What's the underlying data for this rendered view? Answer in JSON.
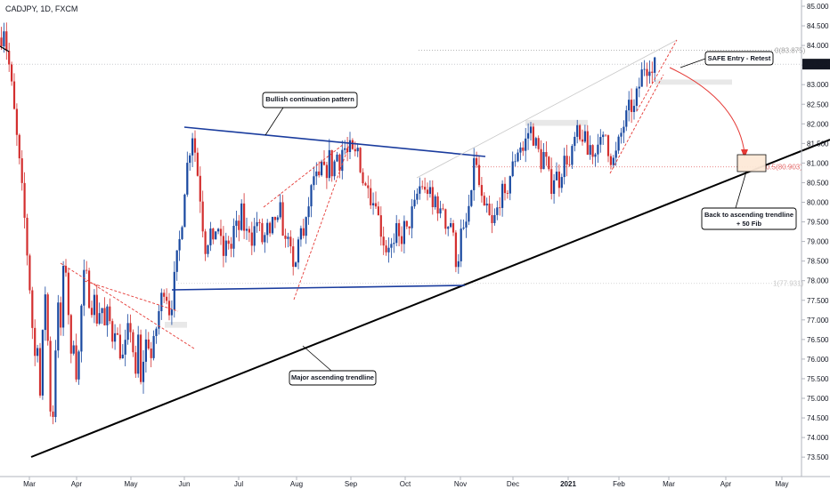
{
  "title": "CADJPY, 1D, FXCM",
  "chart_data": {
    "type": "candlestick",
    "symbol": "CADJPY",
    "timeframe": "1D",
    "source": "FXCM",
    "ylim": [
      73.2,
      85.1
    ],
    "y_ticks": [
      73.5,
      74.0,
      74.5,
      75.0,
      75.5,
      76.0,
      76.5,
      77.0,
      77.5,
      78.0,
      78.5,
      79.0,
      79.5,
      80.0,
      80.5,
      81.0,
      81.5,
      82.0,
      82.5,
      83.0,
      83.5,
      84.0,
      84.5,
      85.0
    ],
    "x_ticks": [
      "Mar",
      "Apr",
      "May",
      "Jun",
      "Jul",
      "Aug",
      "Sep",
      "Oct",
      "Nov",
      "Dec",
      "2021",
      "Feb",
      "Mar",
      "Apr",
      "May"
    ],
    "current_price": "83.523",
    "colors": {
      "up": "#1848a0",
      "down": "#d32f2f",
      "price_tag": "#131722"
    },
    "fib_levels": [
      {
        "label": "0(83.875)",
        "value": 83.875
      },
      {
        "label": "0.5(80.903)",
        "value": 80.903
      },
      {
        "label": "1(77.931)",
        "value": 77.931
      }
    ],
    "annotations": [
      {
        "id": "bullish",
        "text": "Bullish continuation pattern"
      },
      {
        "id": "major",
        "text": "Major ascending trendline"
      },
      {
        "id": "safe",
        "text": "SAFE Entry - Retest"
      },
      {
        "id": "back",
        "lines": [
          "Back to ascending trendline",
          "+ 50 Fib"
        ]
      }
    ],
    "path_points": [
      [
        0,
        84.2
      ],
      [
        3,
        84.5
      ],
      [
        6,
        83.9
      ],
      [
        10,
        83.3
      ],
      [
        14,
        82.4
      ],
      [
        18,
        81.5
      ],
      [
        22,
        80.6
      ],
      [
        26,
        79.6
      ],
      [
        30,
        78.4
      ],
      [
        34,
        77.2
      ],
      [
        37,
        75.8
      ],
      [
        40,
        76.9
      ],
      [
        43,
        74.8
      ],
      [
        46,
        76.4
      ],
      [
        50,
        78.0
      ],
      [
        54,
        75.2
      ],
      [
        57,
        74.0
      ],
      [
        60,
        75.8
      ],
      [
        63,
        77.6
      ],
      [
        66,
        76.4
      ],
      [
        69,
        78.1
      ],
      [
        72,
        78.5
      ],
      [
        75,
        77.4
      ],
      [
        78,
        75.9
      ],
      [
        81,
        76.6
      ],
      [
        85,
        75.4
      ],
      [
        88,
        76.5
      ],
      [
        91,
        77.8
      ],
      [
        94,
        78.3
      ],
      [
        97,
        77.9
      ],
      [
        100,
        77.2
      ],
      [
        104,
        77.6
      ],
      [
        108,
        76.9
      ],
      [
        112,
        77.5
      ],
      [
        116,
        76.8
      ],
      [
        120,
        77.3
      ],
      [
        124,
        76.5
      ],
      [
        128,
        76.9
      ],
      [
        132,
        76.3
      ],
      [
        136,
        76.0
      ],
      [
        140,
        76.4
      ],
      [
        144,
        77.0
      ],
      [
        148,
        76.2
      ],
      [
        151,
        75.4
      ],
      [
        154,
        76.7
      ],
      [
        157,
        75.1
      ],
      [
        160,
        76.2
      ],
      [
        164,
        76.6
      ],
      [
        168,
        76.0
      ],
      [
        172,
        76.5
      ],
      [
        176,
        77.1
      ],
      [
        180,
        77.6
      ],
      [
        184,
        77.9
      ],
      [
        188,
        77.2
      ],
      [
        192,
        77.5
      ],
      [
        195,
        78.2
      ],
      [
        198,
        78.7
      ],
      [
        202,
        79.3
      ],
      [
        206,
        80.4
      ],
      [
        209,
        81.0
      ],
      [
        212,
        81.4
      ],
      [
        215,
        81.8
      ],
      [
        218,
        81.2
      ],
      [
        221,
        80.6
      ],
      [
        224,
        80.0
      ],
      [
        227,
        79.2
      ],
      [
        230,
        78.7
      ],
      [
        234,
        79.4
      ],
      [
        238,
        78.8
      ],
      [
        242,
        79.6
      ],
      [
        246,
        79.0
      ],
      [
        250,
        78.6
      ],
      [
        254,
        79.1
      ],
      [
        258,
        78.8
      ],
      [
        262,
        79.5
      ],
      [
        266,
        79.2
      ],
      [
        270,
        79.8
      ],
      [
        274,
        79.1
      ],
      [
        278,
        79.4
      ],
      [
        282,
        79.0
      ],
      [
        286,
        79.6
      ],
      [
        290,
        79.3
      ],
      [
        294,
        78.9
      ],
      [
        298,
        79.4
      ],
      [
        302,
        79.0
      ],
      [
        306,
        79.7
      ],
      [
        310,
        79.4
      ],
      [
        314,
        79.9
      ],
      [
        318,
        78.8
      ],
      [
        322,
        79.3
      ],
      [
        326,
        78.4
      ],
      [
        329,
        78.1
      ],
      [
        332,
        78.7
      ],
      [
        336,
        79.5
      ],
      [
        340,
        79.0
      ],
      [
        344,
        79.8
      ],
      [
        348,
        80.3
      ],
      [
        352,
        80.8
      ],
      [
        356,
        80.4
      ],
      [
        360,
        81.0
      ],
      [
        364,
        80.6
      ],
      [
        368,
        81.2
      ],
      [
        372,
        80.7
      ],
      [
        376,
        81.3
      ],
      [
        380,
        81.0
      ],
      [
        384,
        81.5
      ],
      [
        388,
        81.2
      ],
      [
        392,
        81.4
      ],
      [
        396,
        81.1
      ],
      [
        400,
        81.4
      ],
      [
        404,
        80.8
      ],
      [
        408,
        80.3
      ],
      [
        412,
        80.6
      ],
      [
        416,
        79.9
      ],
      [
        420,
        80.2
      ],
      [
        424,
        79.5
      ],
      [
        428,
        79.1
      ],
      [
        432,
        78.8
      ],
      [
        436,
        79.0
      ],
      [
        440,
        78.7
      ],
      [
        444,
        79.3
      ],
      [
        448,
        78.9
      ],
      [
        452,
        79.4
      ],
      [
        456,
        79.2
      ],
      [
        460,
        79.7
      ],
      [
        464,
        79.9
      ],
      [
        468,
        80.3
      ],
      [
        472,
        80.5
      ],
      [
        476,
        80.2
      ],
      [
        480,
        80.4
      ],
      [
        484,
        79.8
      ],
      [
        488,
        80.2
      ],
      [
        492,
        79.6
      ],
      [
        496,
        79.9
      ],
      [
        500,
        79.3
      ],
      [
        504,
        79.6
      ],
      [
        508,
        79.0
      ],
      [
        511,
        78.4
      ],
      [
        514,
        78.7
      ],
      [
        517,
        79.4
      ],
      [
        520,
        79.1
      ],
      [
        524,
        79.8
      ],
      [
        528,
        80.1
      ],
      [
        530,
        81.3
      ],
      [
        534,
        80.8
      ],
      [
        538,
        80.2
      ],
      [
        542,
        79.7
      ],
      [
        546,
        79.9
      ],
      [
        550,
        79.3
      ],
      [
        554,
        79.6
      ],
      [
        558,
        79.9
      ],
      [
        562,
        80.3
      ],
      [
        566,
        80.0
      ],
      [
        570,
        80.6
      ],
      [
        574,
        80.9
      ],
      [
        578,
        81.2
      ],
      [
        582,
        81.5
      ],
      [
        586,
        81.3
      ],
      [
        590,
        81.7
      ],
      [
        594,
        81.9
      ],
      [
        598,
        81.6
      ],
      [
        602,
        81.4
      ],
      [
        606,
        81.0
      ],
      [
        610,
        81.3
      ],
      [
        614,
        80.7
      ],
      [
        618,
        80.4
      ],
      [
        622,
        80.8
      ],
      [
        626,
        80.5
      ],
      [
        630,
        80.9
      ],
      [
        634,
        81.2
      ],
      [
        638,
        80.9
      ],
      [
        642,
        81.4
      ],
      [
        646,
        81.8
      ],
      [
        650,
        81.5
      ],
      [
        654,
        81.8
      ],
      [
        658,
        81.2
      ],
      [
        662,
        81.5
      ],
      [
        666,
        81.1
      ],
      [
        670,
        81.7
      ],
      [
        674,
        81.4
      ],
      [
        678,
        81.8
      ],
      [
        682,
        81.3
      ],
      [
        686,
        81.0
      ],
      [
        690,
        81.2
      ],
      [
        694,
        81.6
      ],
      [
        698,
        81.9
      ],
      [
        702,
        82.2
      ],
      [
        706,
        82.5
      ],
      [
        710,
        82.3
      ],
      [
        714,
        82.8
      ],
      [
        718,
        83.1
      ],
      [
        721,
        83.6
      ],
      [
        724,
        83.3
      ],
      [
        727,
        83.7
      ],
      [
        730,
        83.2
      ],
      [
        733,
        83.5
      ],
      [
        736,
        83.523
      ]
    ]
  }
}
